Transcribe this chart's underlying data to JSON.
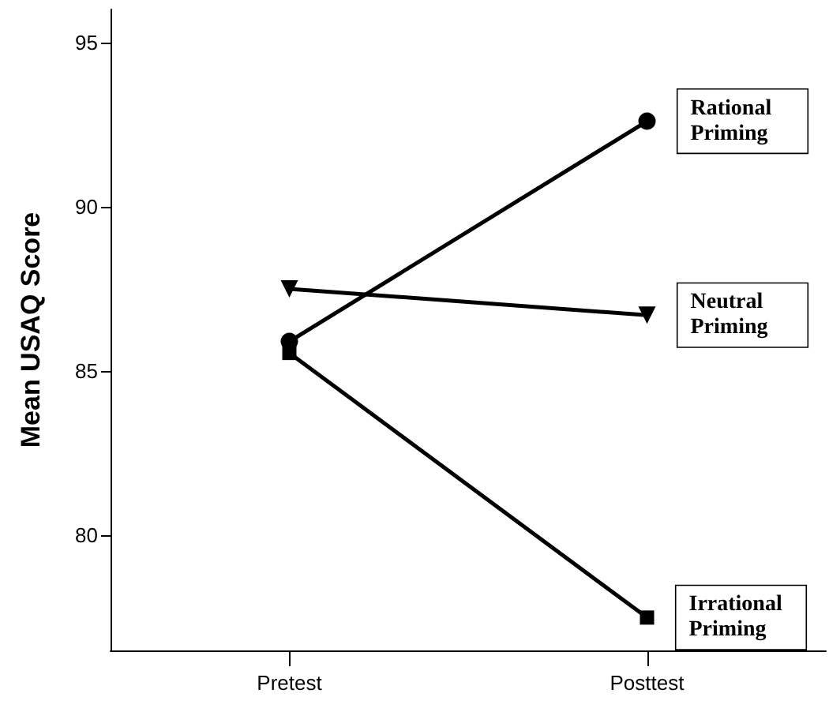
{
  "chart_data": {
    "type": "line",
    "ylabel": "Mean USAQ Score",
    "categories": [
      "Pretest",
      "Posttest"
    ],
    "series": [
      {
        "name": "Rational Priming",
        "color": "#000000",
        "values": [
          85.9,
          92.6
        ],
        "marker": "circle"
      },
      {
        "name": "Neutral Priming",
        "color": "#000000",
        "values": [
          87.5,
          86.7
        ],
        "marker": "triangle"
      },
      {
        "name": "Irrational Priming",
        "color": "#000000",
        "values": [
          85.55,
          77.5
        ],
        "marker": "square"
      }
    ],
    "ylim": [
      76.5,
      96
    ],
    "yticks": [
      80,
      85,
      90,
      95
    ],
    "grid": false,
    "legend": false,
    "line_style": "solid"
  }
}
